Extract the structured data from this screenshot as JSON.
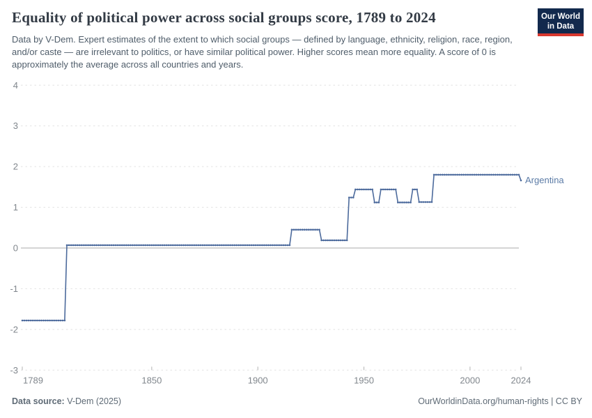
{
  "logo": {
    "line1": "Our World",
    "line2": "in Data",
    "bg_color": "#12294d",
    "accent_color": "#d8382f"
  },
  "chart_data": {
    "type": "line",
    "title": "Equality of political power across social groups score, 1789 to 2024",
    "subtitle": "Data by V-Dem. Expert estimates of the extent to which social groups — defined by language, ethnicity, religion, race, region, and/or caste — are irrelevant to politics, or have similar political power. Higher scores mean more equality. A score of 0 is approximately the average across all countries and years.",
    "entity": "Argentina",
    "grid": true,
    "legend_position": "end-of-line-label",
    "x": {
      "min": 1789,
      "max": 2024,
      "ticks": [
        1789,
        1850,
        1900,
        1950,
        2000,
        2024
      ]
    },
    "y": {
      "min": -3,
      "max": 4,
      "ticks": [
        4,
        3,
        2,
        1,
        0,
        -1,
        -2,
        -3
      ]
    },
    "colors": {
      "gridline": "#e2e2e2",
      "zero_line": "#a8a8a8",
      "tick_mark": "#b3b3b3",
      "tick_text": "#81878d"
    },
    "series": [
      {
        "name": "Argentina",
        "color": "#4c6a9c",
        "label_color": "#5b7ba6",
        "step_segments": [
          {
            "from": 1789,
            "to": 1809,
            "value": -1.78
          },
          {
            "from": 1810,
            "to": 1915,
            "value": 0.07
          },
          {
            "from": 1916,
            "to": 1929,
            "value": 0.45
          },
          {
            "from": 1930,
            "to": 1942,
            "value": 0.19
          },
          {
            "from": 1943,
            "to": 1945,
            "value": 1.24
          },
          {
            "from": 1946,
            "to": 1954,
            "value": 1.44
          },
          {
            "from": 1955,
            "to": 1957,
            "value": 1.12
          },
          {
            "from": 1958,
            "to": 1965,
            "value": 1.44
          },
          {
            "from": 1966,
            "to": 1972,
            "value": 1.12
          },
          {
            "from": 1973,
            "to": 1975,
            "value": 1.44
          },
          {
            "from": 1976,
            "to": 1982,
            "value": 1.13
          },
          {
            "from": 1983,
            "to": 2023,
            "value": 1.8
          },
          {
            "from": 2024,
            "to": 2024,
            "value": 1.66
          }
        ]
      }
    ]
  },
  "footer": {
    "source_label": "Data source:",
    "source_value": "V-Dem (2025)",
    "url_text": "OurWorldinData.org/human-rights",
    "separator": " | ",
    "license_text": "CC BY"
  }
}
